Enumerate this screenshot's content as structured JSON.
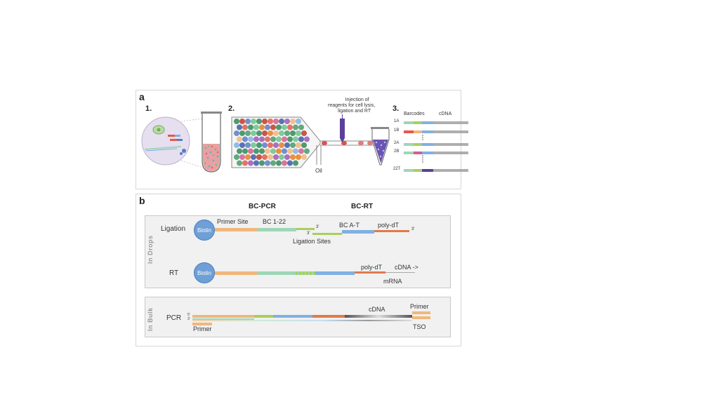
{
  "panel_a": {
    "letter": "a",
    "step1": "1.",
    "step2": "2.",
    "step3": "3.",
    "injection_text_line1": "Injection of",
    "injection_text_line2": "reagents for cell lysis,",
    "injection_text_line3": "ligation and RT",
    "oil_label": "Oil",
    "barcodes_label": "Barcodes",
    "cdna_label": "cDNA",
    "rows": [
      "1A",
      "1B",
      "2A",
      "2B",
      "22T"
    ]
  },
  "panel_b": {
    "letter": "b",
    "bc_pcr": "BC-PCR",
    "bc_rt": "BC-RT",
    "in_drops": "In Drops",
    "in_bulk": "In Bulk",
    "ligation": {
      "label": "Ligation",
      "biotin": "Biotin",
      "primer_site": "Primer Site",
      "bc_1_22": "BC 1-22",
      "three_prime_a": "3'",
      "three_prime_b": "3'",
      "ligation_sites": "Ligation Sites",
      "bc_a_t": "BC A-T",
      "poly_dt": "poly-dT",
      "three_prime_c": "3'"
    },
    "rt": {
      "label": "RT",
      "biotin": "Biotin",
      "poly_dt": "poly-dT",
      "cdna_arrow": "cDNA ->",
      "mrna": "mRNA"
    },
    "pcr": {
      "label": "PCR",
      "five_prime": "5'",
      "three_prime": "3'",
      "primer_left": "Primer",
      "cdna": "cDNA",
      "primer_right": "Primer",
      "tso": "TSO"
    }
  },
  "colors": {
    "orange": "#f0b77a",
    "green": "#9ed6b6",
    "lime": "#a9cf5a",
    "blue": "#7fb1e3",
    "red": "#e07a4a",
    "purple": "#5a3f9b",
    "biotin": "#6e9fd6"
  }
}
